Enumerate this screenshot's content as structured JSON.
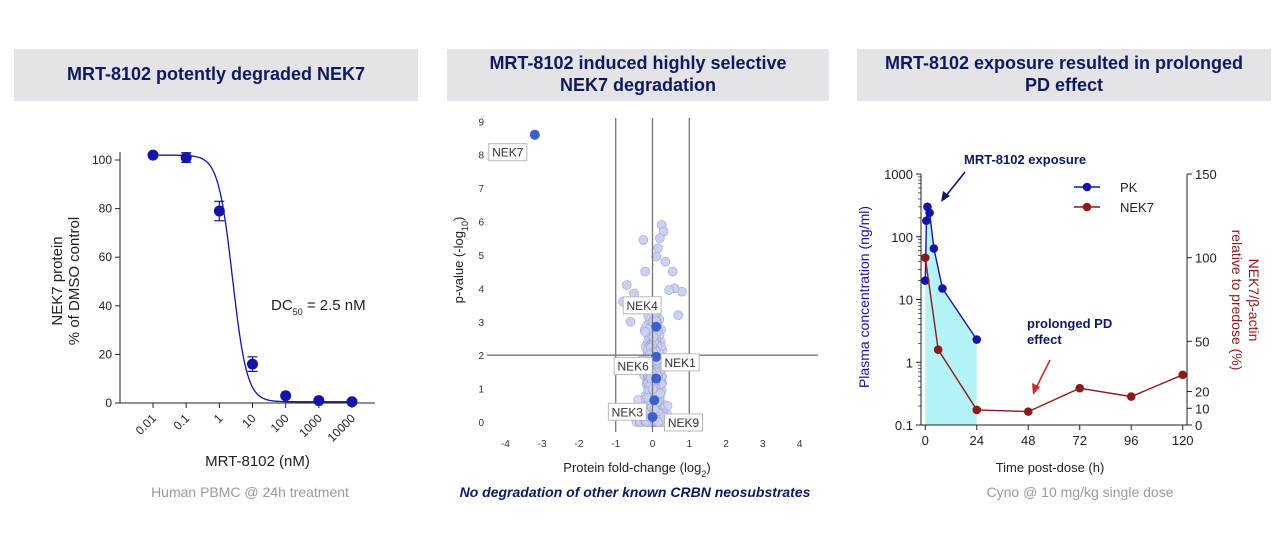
{
  "panels": [
    {
      "title": "MRT-8102 potently degraded NEK7",
      "caption": "Human PBMC @ 24h treatment"
    },
    {
      "title_line1": "MRT-8102 induced highly selective",
      "title_line2": "NEK7 degradation",
      "caption": "No degradation of other known CRBN neosubstrates"
    },
    {
      "title_line1": "MRT-8102 exposure resulted in prolonged",
      "title_line2": "PD effect",
      "caption": "Cyno @ 10 mg/kg single dose"
    }
  ],
  "chart_data": [
    {
      "type": "scatter",
      "subtype": "dose-response",
      "xscale": "log",
      "categories": [
        "0.01",
        "0.1",
        "1",
        "10",
        "100",
        "1000",
        "10000"
      ],
      "x": [
        0.01,
        0.1,
        1,
        10,
        100,
        1000,
        10000
      ],
      "values": [
        102,
        101,
        79,
        16,
        3,
        1,
        0.5
      ],
      "error": [
        0,
        2,
        4,
        3,
        0,
        0,
        0
      ],
      "xlabel": "MRT-8102 (nM)",
      "ylabel_line1": "NEK7 protein",
      "ylabel_line2": "% of DMSO control",
      "ylim": [
        0,
        100
      ],
      "yticks": [
        "0",
        "20",
        "40",
        "60",
        "80",
        "100"
      ],
      "annotation_main": "DC",
      "annotation_sub": "50",
      "annotation_value": " = 2.5 nM",
      "fit": {
        "top": 102,
        "bottom": 0.5,
        "ec50": 2.5,
        "hill": 2.0
      }
    },
    {
      "type": "scatter",
      "subtype": "volcano",
      "xlabel_main": "Protein fold-change (log",
      "xlabel_sub": "2",
      "xlabel_end": ")",
      "ylabel_main": "p-value (-log",
      "ylabel_sub": "10",
      "ylabel_end": ")",
      "xlim": [
        -4.5,
        4.5
      ],
      "ylim": [
        -0.3,
        9.1
      ],
      "xticks": [
        "-4",
        "-3",
        "-2",
        "-1",
        "0",
        "1",
        "2",
        "3",
        "4"
      ],
      "yticks": [
        "0",
        "1",
        "2",
        "3",
        "4",
        "5",
        "6",
        "7",
        "8",
        "9"
      ],
      "thresholds": {
        "x": [
          -1,
          0,
          1
        ],
        "y": 2
      },
      "highlighted": [
        {
          "name": "NEK7",
          "x": -3.2,
          "y": 8.6
        },
        {
          "name": "NEK4",
          "x": 0.1,
          "y": 2.85
        },
        {
          "name": "NEK1",
          "x": 0.1,
          "y": 1.95
        },
        {
          "name": "NEK6",
          "x": 0.1,
          "y": 1.3
        },
        {
          "name": "NEK3",
          "x": 0.05,
          "y": 0.65
        },
        {
          "name": "NEK9",
          "x": 0.0,
          "y": 0.15
        }
      ]
    },
    {
      "type": "line",
      "subtype": "pk-pd",
      "xlabel": "Time post-dose (h)",
      "xticks": [
        "0",
        "24",
        "48",
        "72",
        "96",
        "120"
      ],
      "xlim": [
        -2,
        122
      ],
      "left_axis": {
        "label": "Plasma concentration (ng/ml)",
        "scale": "log",
        "ylim": [
          0.1,
          1000
        ],
        "ticks": [
          "0.1",
          "1",
          "10",
          "100",
          "1000"
        ]
      },
      "right_axis": {
        "label_line1": "NEK7/β-actin",
        "label_line2": "relative to predose (%)",
        "ylim": [
          0,
          150
        ],
        "ticks": [
          "0",
          "10",
          "20",
          "50",
          "100",
          "150"
        ]
      },
      "series": [
        {
          "name": "PK",
          "color": "#1414a8",
          "axis": "left",
          "x": [
            0,
            0.5,
            1,
            2,
            4,
            8,
            24
          ],
          "values": [
            20,
            180,
            300,
            240,
            65,
            15,
            2.3
          ]
        },
        {
          "name": "NEK7",
          "color": "#8b1a1a",
          "axis": "right",
          "x": [
            0,
            6,
            24,
            48,
            72,
            96,
            120
          ],
          "values": [
            100,
            45,
            9,
            8,
            22,
            17,
            30
          ]
        }
      ],
      "annotation_exposure": "MRT-8102 exposure",
      "annotation_pd_line1": "prolonged PD",
      "annotation_pd_line2": "effect"
    }
  ]
}
